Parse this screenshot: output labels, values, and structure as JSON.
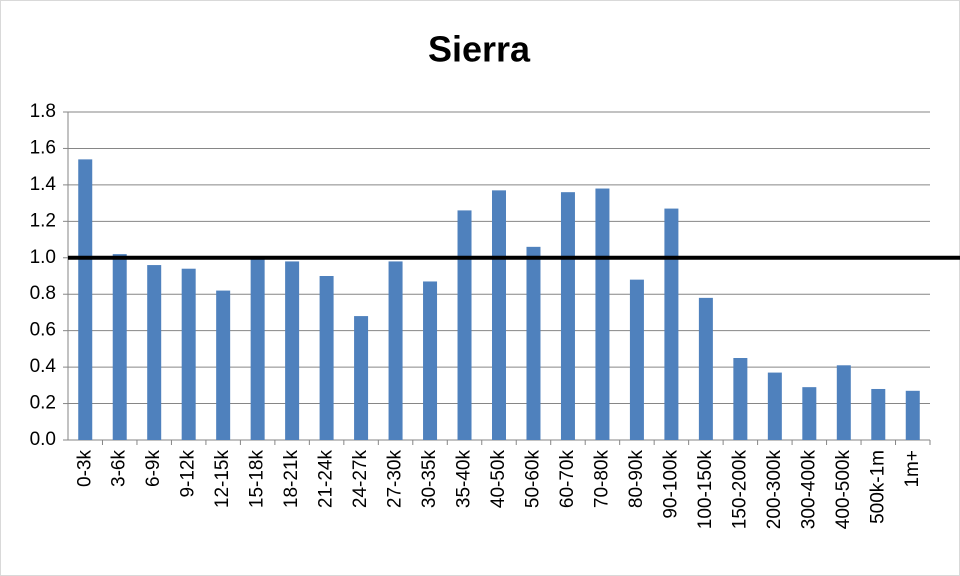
{
  "chart_data": {
    "type": "bar",
    "title": "Sierra",
    "categories": [
      "0-3k",
      "3-6k",
      "6-9k",
      "9-12k",
      "12-15k",
      "15-18k",
      "18-21k",
      "21-24k",
      "24-27k",
      "27-30k",
      "30-35k",
      "35-40k",
      "40-50k",
      "50-60k",
      "60-70k",
      "70-80k",
      "80-90k",
      "90-100k",
      "100-150k",
      "150-200k",
      "200-300k",
      "300-400k",
      "400-500k",
      "500k-1m",
      "1m+"
    ],
    "values": [
      1.54,
      1.02,
      0.96,
      0.94,
      0.82,
      1.0,
      0.98,
      0.9,
      0.68,
      0.98,
      0.87,
      1.26,
      1.37,
      1.06,
      1.36,
      1.38,
      0.88,
      1.27,
      0.78,
      0.45,
      0.37,
      0.29,
      0.41,
      0.28,
      0.27
    ],
    "color": "#4f81bd",
    "ylim": [
      0,
      1.8
    ],
    "yticks": [
      {
        "value": 0,
        "label": "0.0"
      },
      0.2,
      0.4,
      0.6,
      0.8,
      {
        "value": 1,
        "label": "1.0"
      },
      1.2,
      1.4,
      1.6,
      1.8
    ],
    "grid": true,
    "reference_line": 1
  }
}
